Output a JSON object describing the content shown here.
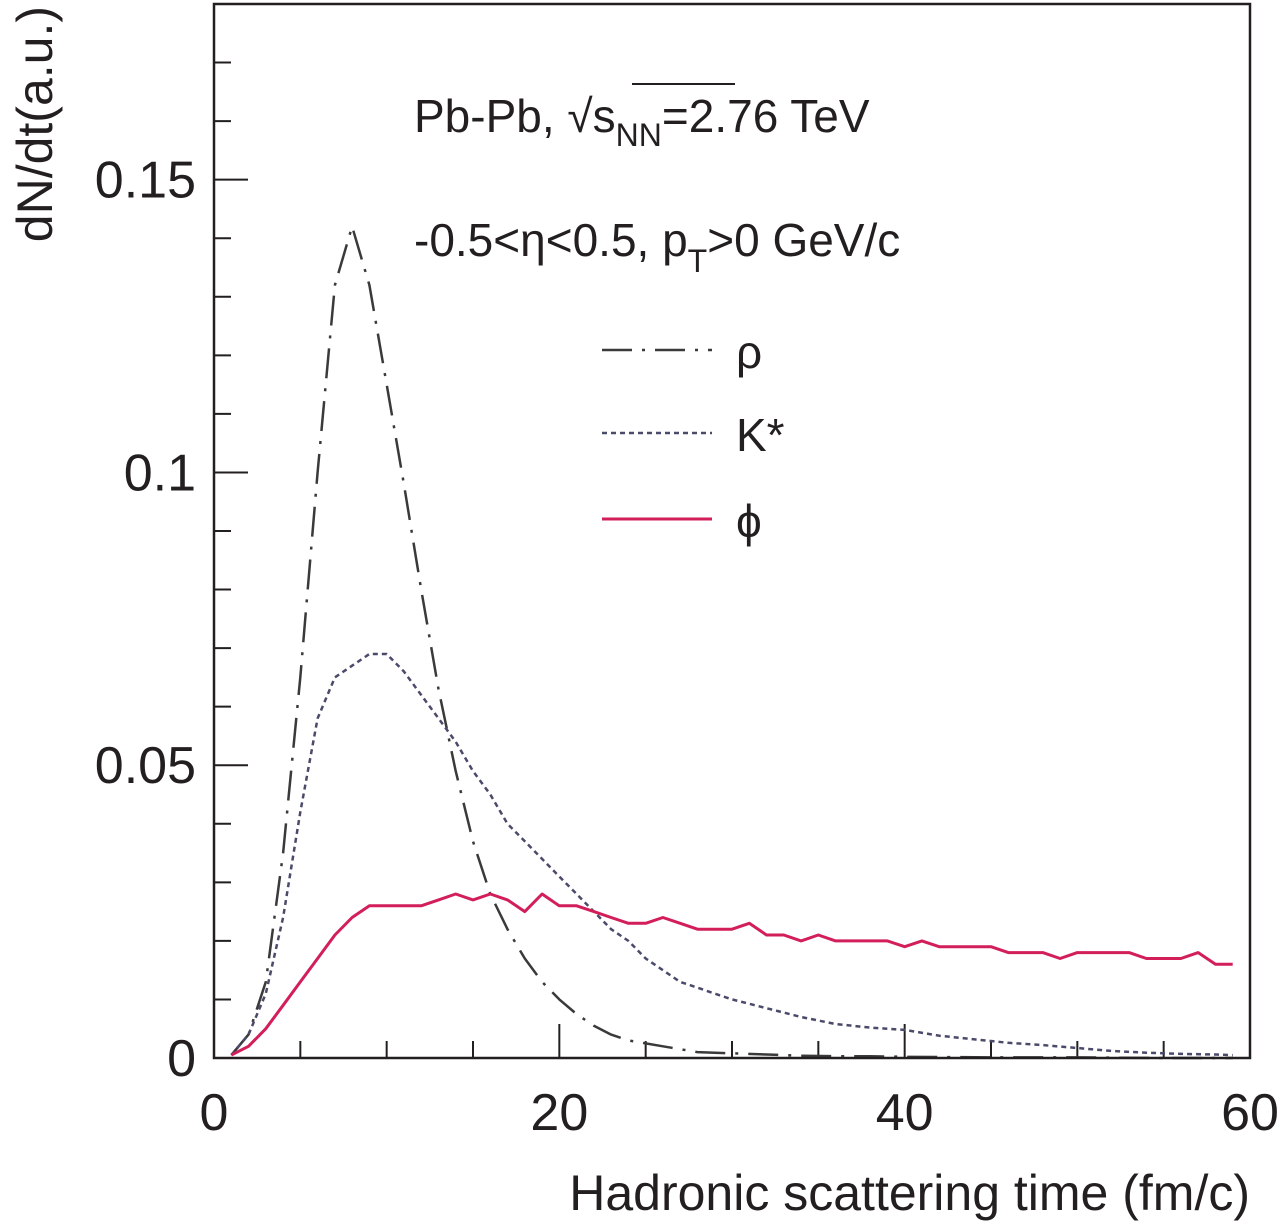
{
  "chart_data": {
    "type": "line",
    "title": "",
    "xlabel": "Hadronic scattering time (fm/c)",
    "ylabel": "dN/dt(a.u.)",
    "xlim": [
      0,
      60
    ],
    "ylim": [
      0,
      0.18
    ],
    "x_ticks": [
      0,
      20,
      40,
      60
    ],
    "x_tick_labels": [
      "0",
      "20",
      "40",
      "60"
    ],
    "y_ticks": [
      0,
      0.05,
      0.1,
      0.15
    ],
    "y_tick_labels": [
      "0",
      "0.05",
      "0.1",
      "0.15"
    ],
    "grid": false,
    "legend_position": "center-right",
    "annotations": {
      "system": {
        "prefix": "Pb-Pb, ",
        "sqrt_symbol": "√",
        "s": "s",
        "sub": "NN",
        "suffix": "=2.76 TeV"
      },
      "cuts": {
        "prefix": "-0.5<η<0.5, p",
        "sub": "T",
        "suffix": ">0 GeV/c"
      }
    },
    "series": [
      {
        "name": "ρ",
        "style": "dash-dot",
        "color": "#3a3a3a",
        "x": [
          1,
          2,
          3,
          4,
          5,
          6,
          7,
          8,
          9,
          10,
          11,
          12,
          13,
          14,
          15,
          16,
          17,
          18,
          19,
          20,
          21,
          22,
          23,
          24,
          25,
          26,
          27,
          28,
          30,
          32,
          34,
          36,
          38,
          40,
          45,
          50,
          55,
          59
        ],
        "y": [
          0.0005,
          0.004,
          0.013,
          0.035,
          0.065,
          0.1,
          0.132,
          0.142,
          0.132,
          0.115,
          0.098,
          0.08,
          0.063,
          0.049,
          0.037,
          0.028,
          0.022,
          0.017,
          0.013,
          0.01,
          0.0075,
          0.0055,
          0.004,
          0.003,
          0.0025,
          0.002,
          0.0015,
          0.001,
          0.0008,
          0.0006,
          0.0004,
          0.0003,
          0.0003,
          0.0002,
          0.0001,
          0.0001,
          0.0,
          0.0
        ]
      },
      {
        "name": "K*",
        "style": "dotted",
        "color": "#4a4a6a",
        "x": [
          1,
          2,
          3,
          4,
          5,
          6,
          7,
          8,
          9,
          10,
          11,
          12,
          13,
          14,
          15,
          16,
          17,
          18,
          19,
          20,
          21,
          22,
          23,
          24,
          25,
          26,
          27,
          28,
          29,
          30,
          32,
          34,
          36,
          38,
          40,
          42,
          44,
          46,
          48,
          50,
          52,
          54,
          56,
          58,
          59
        ],
        "y": [
          0.0005,
          0.004,
          0.011,
          0.024,
          0.042,
          0.058,
          0.065,
          0.067,
          0.069,
          0.069,
          0.066,
          0.062,
          0.058,
          0.054,
          0.049,
          0.045,
          0.04,
          0.037,
          0.034,
          0.031,
          0.028,
          0.025,
          0.022,
          0.02,
          0.017,
          0.015,
          0.013,
          0.012,
          0.011,
          0.01,
          0.0085,
          0.007,
          0.0058,
          0.0052,
          0.0048,
          0.0038,
          0.0032,
          0.0026,
          0.0022,
          0.0017,
          0.0012,
          0.0009,
          0.0007,
          0.0006,
          0.0005
        ]
      },
      {
        "name": "ϕ",
        "style": "solid",
        "color": "#d21f5a",
        "x": [
          1,
          2,
          3,
          4,
          5,
          6,
          7,
          8,
          9,
          10,
          11,
          12,
          13,
          14,
          15,
          16,
          17,
          18,
          19,
          20,
          21,
          22,
          23,
          24,
          25,
          26,
          27,
          28,
          29,
          30,
          31,
          32,
          33,
          34,
          35,
          36,
          37,
          38,
          39,
          40,
          41,
          42,
          43,
          44,
          45,
          46,
          47,
          48,
          49,
          50,
          51,
          52,
          53,
          54,
          55,
          56,
          57,
          58,
          59
        ],
        "y": [
          0.0005,
          0.002,
          0.005,
          0.009,
          0.013,
          0.017,
          0.021,
          0.024,
          0.026,
          0.026,
          0.026,
          0.026,
          0.027,
          0.028,
          0.027,
          0.028,
          0.027,
          0.025,
          0.028,
          0.026,
          0.026,
          0.025,
          0.024,
          0.023,
          0.023,
          0.024,
          0.023,
          0.022,
          0.022,
          0.022,
          0.023,
          0.021,
          0.021,
          0.02,
          0.021,
          0.02,
          0.02,
          0.02,
          0.02,
          0.019,
          0.02,
          0.019,
          0.019,
          0.019,
          0.019,
          0.018,
          0.018,
          0.018,
          0.017,
          0.018,
          0.018,
          0.018,
          0.018,
          0.017,
          0.017,
          0.017,
          0.018,
          0.016,
          0.016
        ]
      }
    ]
  }
}
